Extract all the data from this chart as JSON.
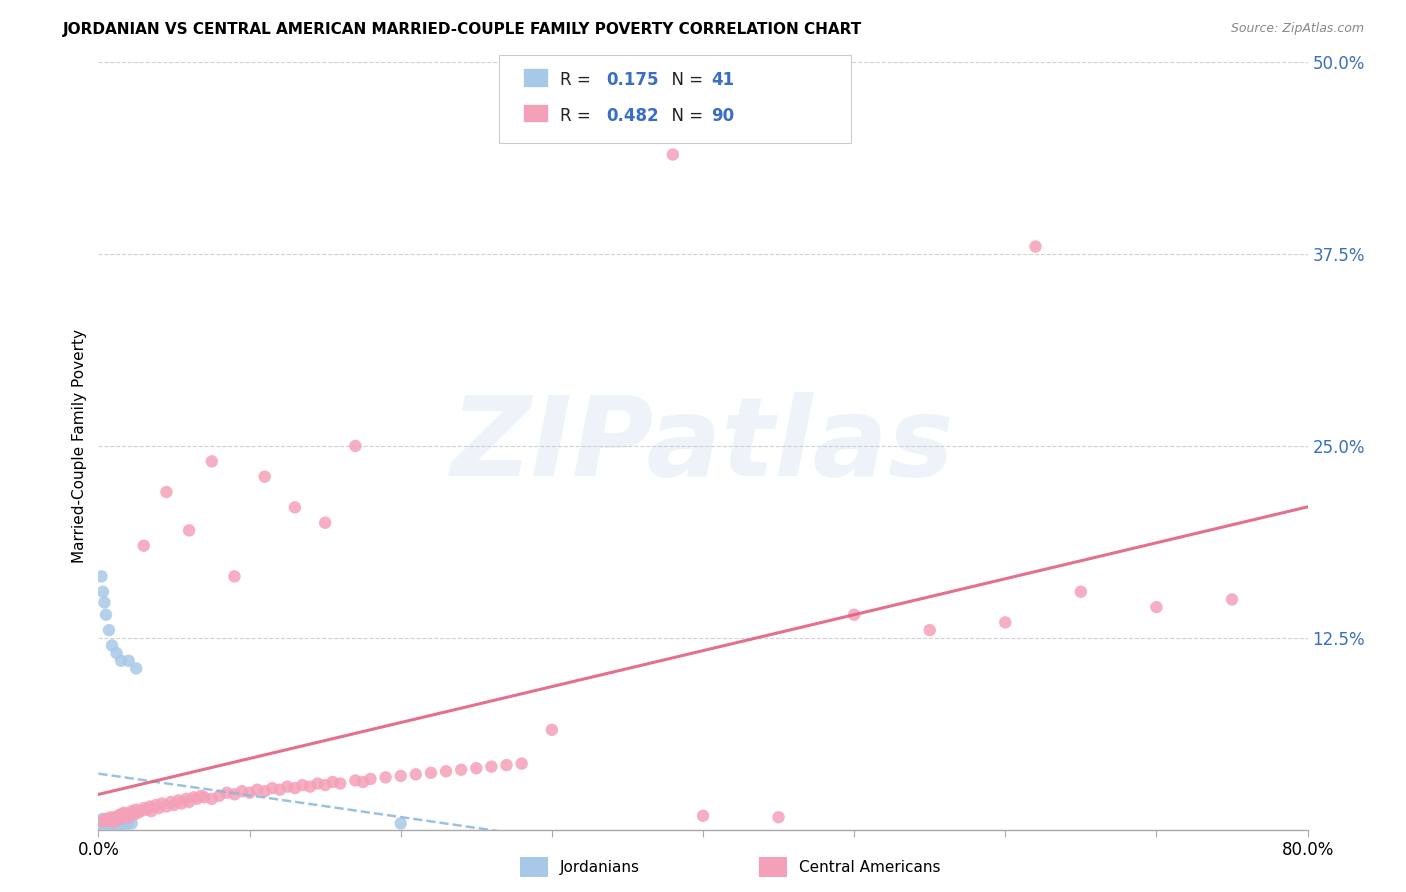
{
  "title": "JORDANIAN VS CENTRAL AMERICAN MARRIED-COUPLE FAMILY POVERTY CORRELATION CHART",
  "source": "Source: ZipAtlas.com",
  "ylabel_label": "Married-Couple Family Poverty",
  "xlim": [
    0.0,
    0.8
  ],
  "ylim": [
    0.0,
    0.5
  ],
  "legend_label1": "Jordanians",
  "legend_label2": "Central Americans",
  "R1": 0.175,
  "N1": 41,
  "R2": 0.482,
  "N2": 90,
  "color_blue": "#a8c8e8",
  "color_pink": "#f4a0b8",
  "color_blue_line": "#8ab8d8",
  "color_pink_line": "#e06080",
  "background_color": "#ffffff",
  "grid_color": "#cccccc",
  "marker_size": 80,
  "jord_x": [
    0.001,
    0.001,
    0.002,
    0.002,
    0.002,
    0.003,
    0.003,
    0.003,
    0.004,
    0.004,
    0.005,
    0.005,
    0.006,
    0.006,
    0.007,
    0.007,
    0.008,
    0.008,
    0.009,
    0.009,
    0.01,
    0.011,
    0.012,
    0.013,
    0.014,
    0.015,
    0.016,
    0.018,
    0.02,
    0.022,
    0.002,
    0.003,
    0.004,
    0.005,
    0.007,
    0.009,
    0.012,
    0.015,
    0.02,
    0.025,
    0.2
  ],
  "jord_y": [
    0.002,
    0.005,
    0.003,
    0.004,
    0.006,
    0.002,
    0.004,
    0.007,
    0.003,
    0.005,
    0.002,
    0.004,
    0.003,
    0.006,
    0.002,
    0.005,
    0.003,
    0.004,
    0.002,
    0.005,
    0.003,
    0.004,
    0.003,
    0.005,
    0.004,
    0.003,
    0.004,
    0.003,
    0.005,
    0.004,
    0.165,
    0.155,
    0.148,
    0.14,
    0.13,
    0.12,
    0.115,
    0.11,
    0.11,
    0.105,
    0.004
  ],
  "ca_x": [
    0.003,
    0.005,
    0.007,
    0.008,
    0.009,
    0.01,
    0.011,
    0.012,
    0.013,
    0.014,
    0.015,
    0.016,
    0.017,
    0.018,
    0.019,
    0.02,
    0.022,
    0.024,
    0.025,
    0.026,
    0.028,
    0.03,
    0.032,
    0.034,
    0.035,
    0.038,
    0.04,
    0.042,
    0.045,
    0.048,
    0.05,
    0.053,
    0.055,
    0.058,
    0.06,
    0.063,
    0.065,
    0.068,
    0.07,
    0.075,
    0.08,
    0.085,
    0.09,
    0.095,
    0.1,
    0.105,
    0.11,
    0.115,
    0.12,
    0.125,
    0.13,
    0.135,
    0.14,
    0.145,
    0.15,
    0.155,
    0.16,
    0.17,
    0.175,
    0.18,
    0.19,
    0.2,
    0.21,
    0.22,
    0.23,
    0.24,
    0.25,
    0.26,
    0.27,
    0.28,
    0.03,
    0.045,
    0.06,
    0.075,
    0.09,
    0.11,
    0.13,
    0.15,
    0.17,
    0.3,
    0.4,
    0.45,
    0.5,
    0.55,
    0.6,
    0.65,
    0.7,
    0.75,
    0.38,
    0.62
  ],
  "ca_y": [
    0.005,
    0.007,
    0.006,
    0.008,
    0.007,
    0.005,
    0.008,
    0.006,
    0.009,
    0.007,
    0.01,
    0.008,
    0.011,
    0.009,
    0.01,
    0.008,
    0.012,
    0.01,
    0.013,
    0.011,
    0.012,
    0.014,
    0.013,
    0.015,
    0.012,
    0.016,
    0.014,
    0.017,
    0.015,
    0.018,
    0.016,
    0.019,
    0.017,
    0.02,
    0.018,
    0.021,
    0.02,
    0.022,
    0.021,
    0.02,
    0.022,
    0.024,
    0.023,
    0.025,
    0.024,
    0.026,
    0.025,
    0.027,
    0.026,
    0.028,
    0.027,
    0.029,
    0.028,
    0.03,
    0.029,
    0.031,
    0.03,
    0.032,
    0.031,
    0.033,
    0.034,
    0.035,
    0.036,
    0.037,
    0.038,
    0.039,
    0.04,
    0.041,
    0.042,
    0.043,
    0.185,
    0.22,
    0.195,
    0.24,
    0.165,
    0.23,
    0.21,
    0.2,
    0.25,
    0.065,
    0.009,
    0.008,
    0.14,
    0.13,
    0.135,
    0.155,
    0.145,
    0.15,
    0.44,
    0.38
  ]
}
